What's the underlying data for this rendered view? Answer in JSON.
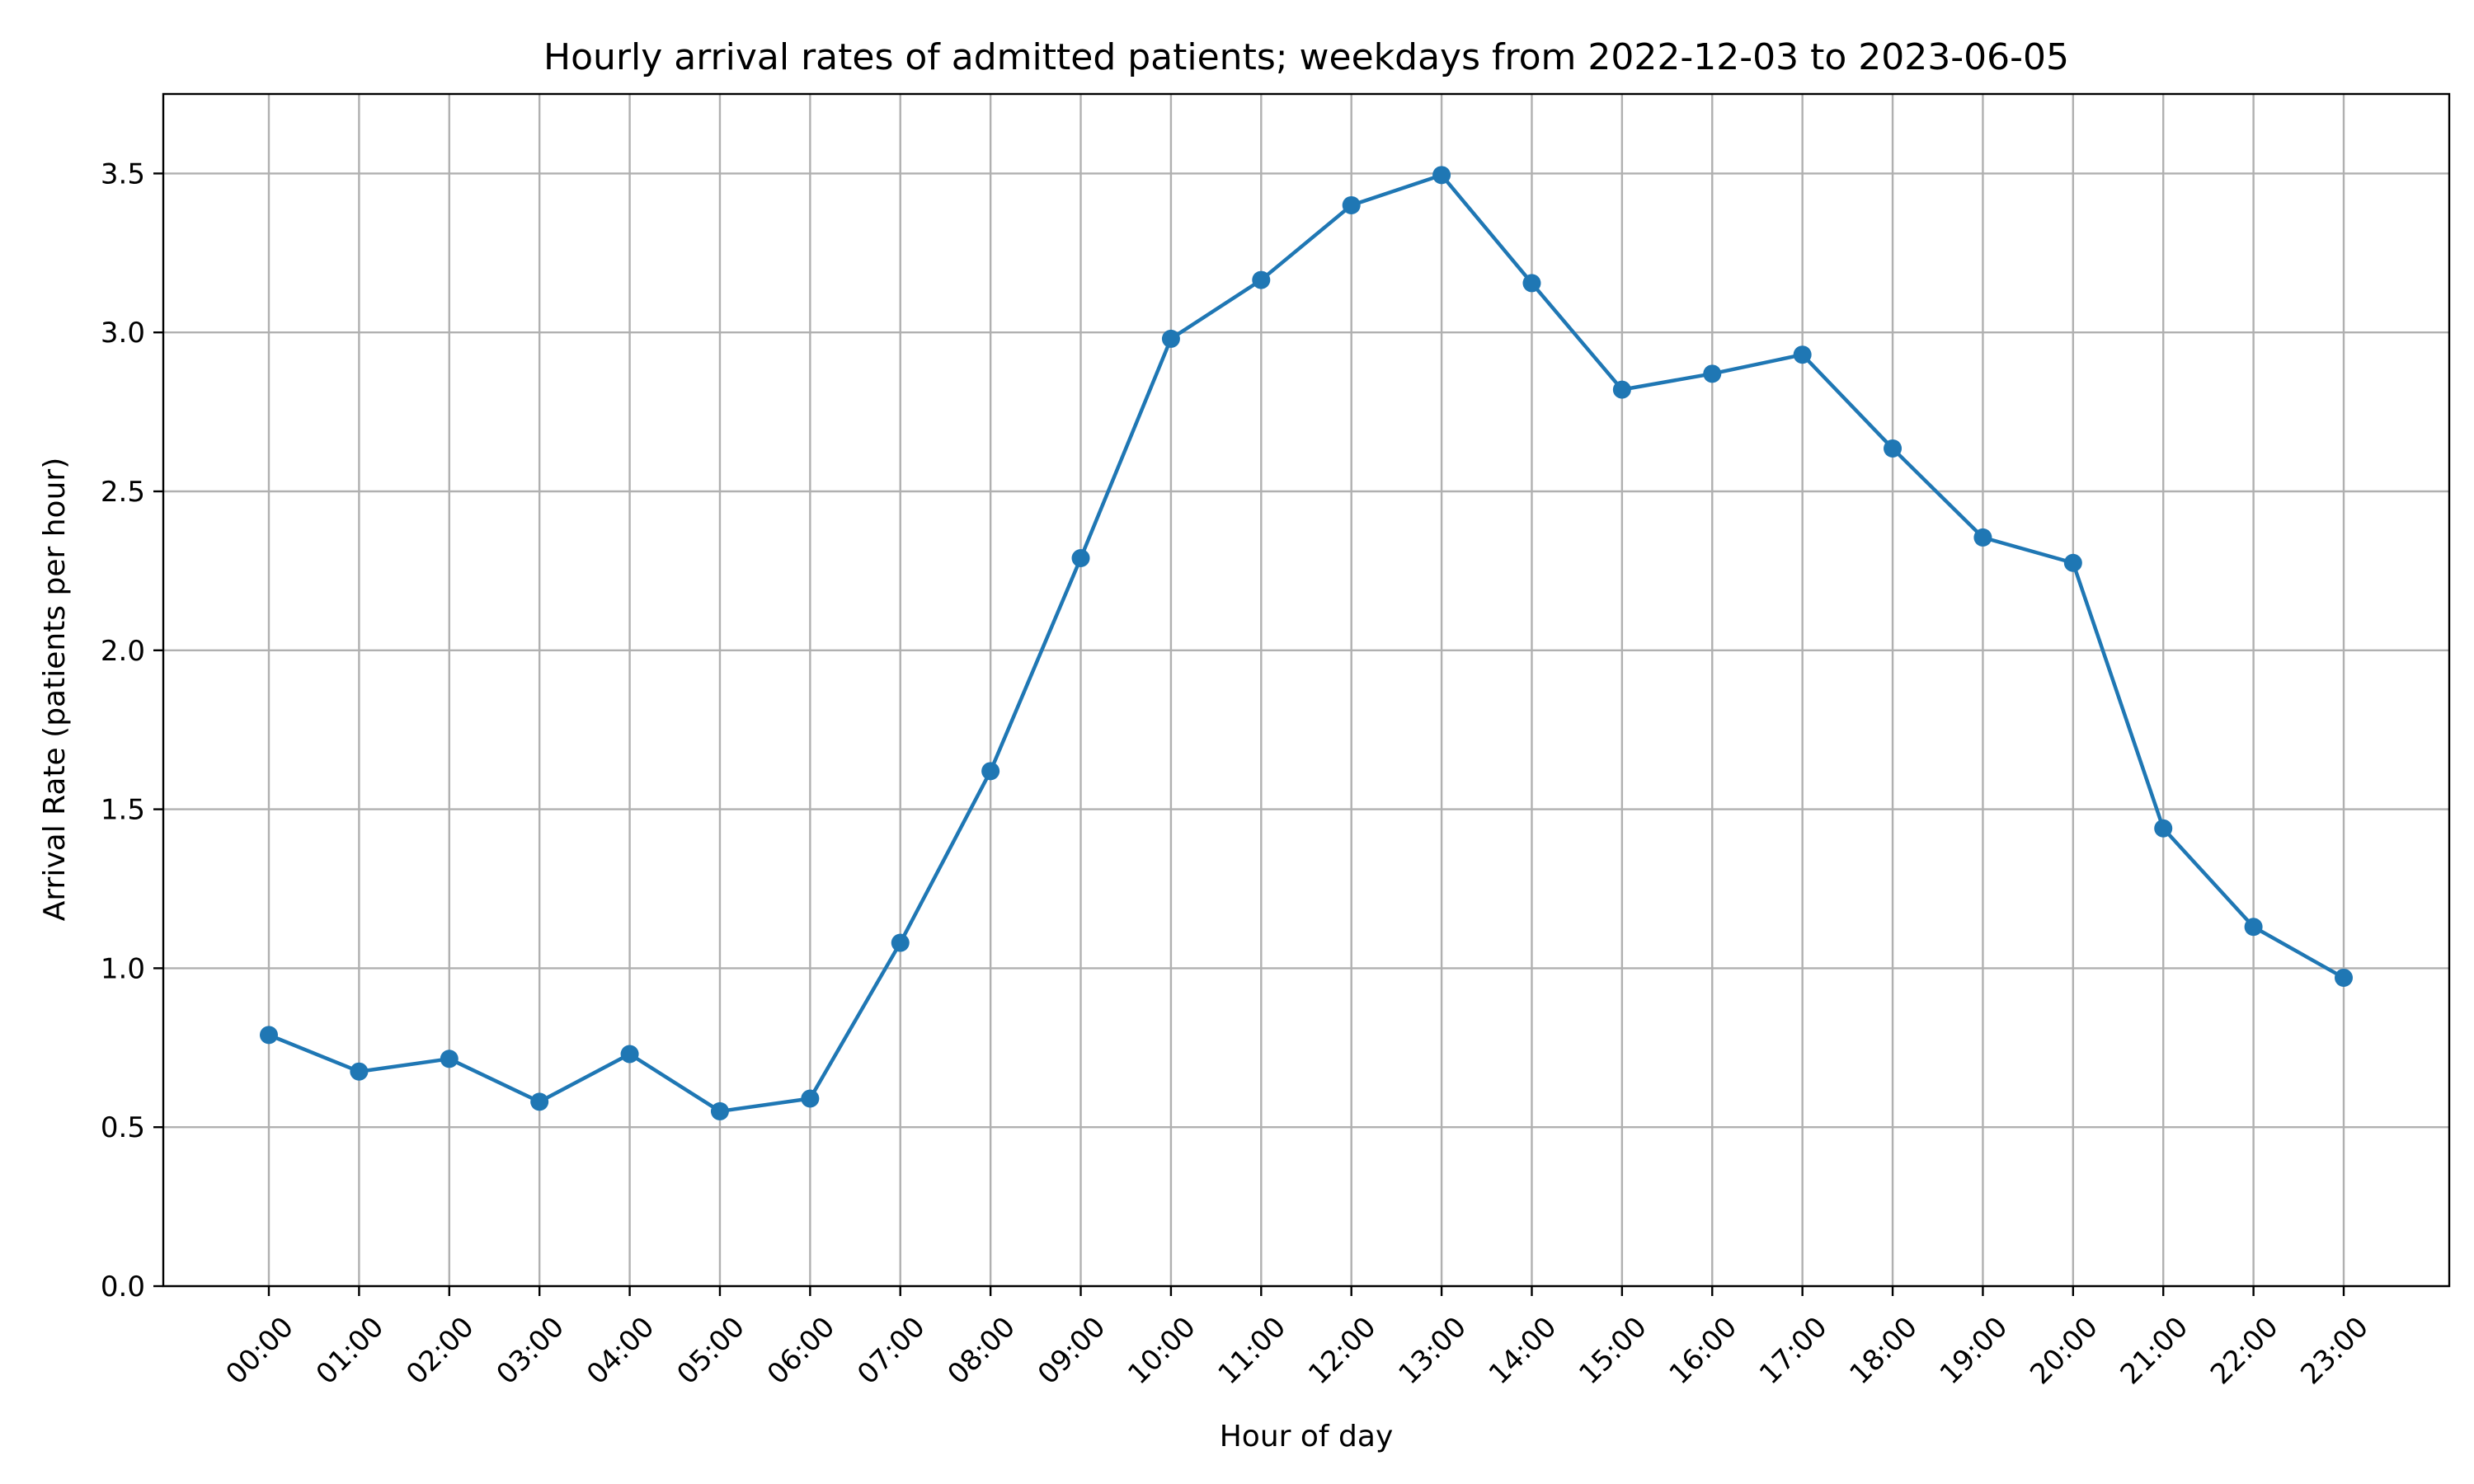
{
  "chart_data": {
    "type": "line",
    "title": "Hourly arrival rates of admitted patients; weekdays from 2022-12-03 to 2023-06-05",
    "xlabel": "Hour of day",
    "ylabel": "Arrival Rate (patients per hour)",
    "categories": [
      "00:00",
      "01:00",
      "02:00",
      "03:00",
      "04:00",
      "05:00",
      "06:00",
      "07:00",
      "08:00",
      "09:00",
      "10:00",
      "11:00",
      "12:00",
      "13:00",
      "14:00",
      "15:00",
      "16:00",
      "17:00",
      "18:00",
      "19:00",
      "20:00",
      "21:00",
      "22:00",
      "23:00"
    ],
    "series": [
      {
        "values": [
          0.79,
          0.675,
          0.715,
          0.58,
          0.73,
          0.55,
          0.59,
          1.08,
          1.62,
          2.29,
          2.98,
          3.165,
          3.4,
          3.495,
          3.155,
          2.82,
          2.87,
          2.93,
          2.635,
          2.355,
          2.275,
          1.44,
          1.13,
          0.97
        ],
        "color": "#1f77b4"
      }
    ],
    "ylim": [
      0,
      3.75
    ],
    "yticks": [
      "0.0",
      "0.5",
      "1.0",
      "1.5",
      "2.0",
      "2.5",
      "3.0",
      "3.5"
    ],
    "grid": true,
    "marker": "circle"
  }
}
